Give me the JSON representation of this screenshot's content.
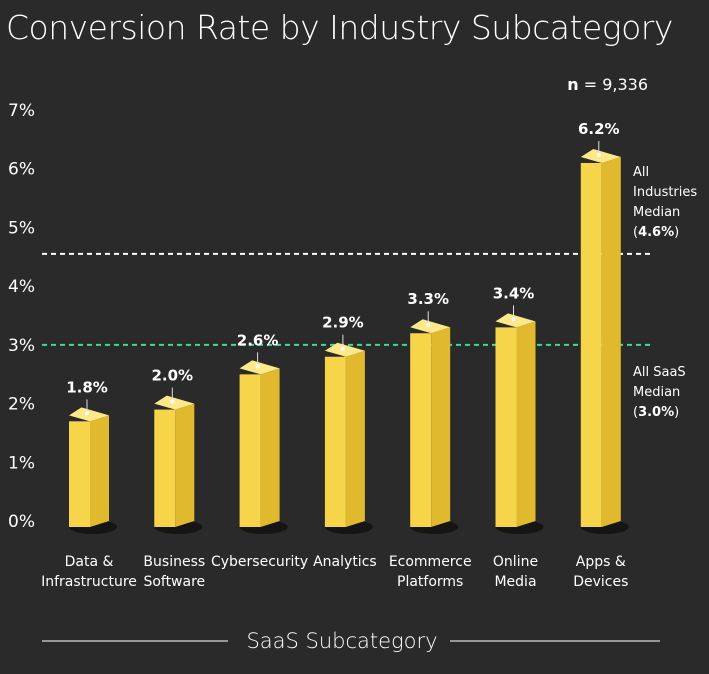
{
  "chart_data": {
    "type": "bar",
    "title": "Conversion Rate by Industry Subcategory",
    "xlabel": "SaaS Subcategory",
    "ylabel": "",
    "ylim": [
      0,
      7
    ],
    "yticks": [
      "0%",
      "1%",
      "2%",
      "3%",
      "4%",
      "5%",
      "6%",
      "7%"
    ],
    "sample_note": {
      "prefix": "n",
      "suffix": " = 9,336"
    },
    "categories": [
      [
        "Data &",
        "Infrastructure"
      ],
      [
        "Business",
        "Software"
      ],
      [
        "Cybersecurity"
      ],
      [
        "Analytics"
      ],
      [
        "Ecommerce",
        "Platforms"
      ],
      [
        "Online",
        "Media"
      ],
      [
        "Apps &",
        "Devices"
      ]
    ],
    "values": [
      1.8,
      2.0,
      2.6,
      2.9,
      3.3,
      3.4,
      6.2
    ],
    "value_labels": [
      "1.8%",
      "2.0%",
      "2.6%",
      "2.9%",
      "3.3%",
      "3.4%",
      "6.2%"
    ],
    "reference_lines": [
      {
        "value": 4.55,
        "lines": [
          "All",
          "Industries",
          "Median"
        ],
        "bold_value": "4.6%",
        "color": "#ffffff"
      },
      {
        "value": 3.0,
        "lines": [
          "All SaaS",
          "Median"
        ],
        "bold_value": "3.0%",
        "color": "#3ddc97"
      }
    ],
    "grid": false,
    "colors": {
      "bar_front": "#f7d54a",
      "bar_side": "#e0b92e",
      "bar_top": "#fde98a",
      "background": "#2a2a2a"
    }
  }
}
